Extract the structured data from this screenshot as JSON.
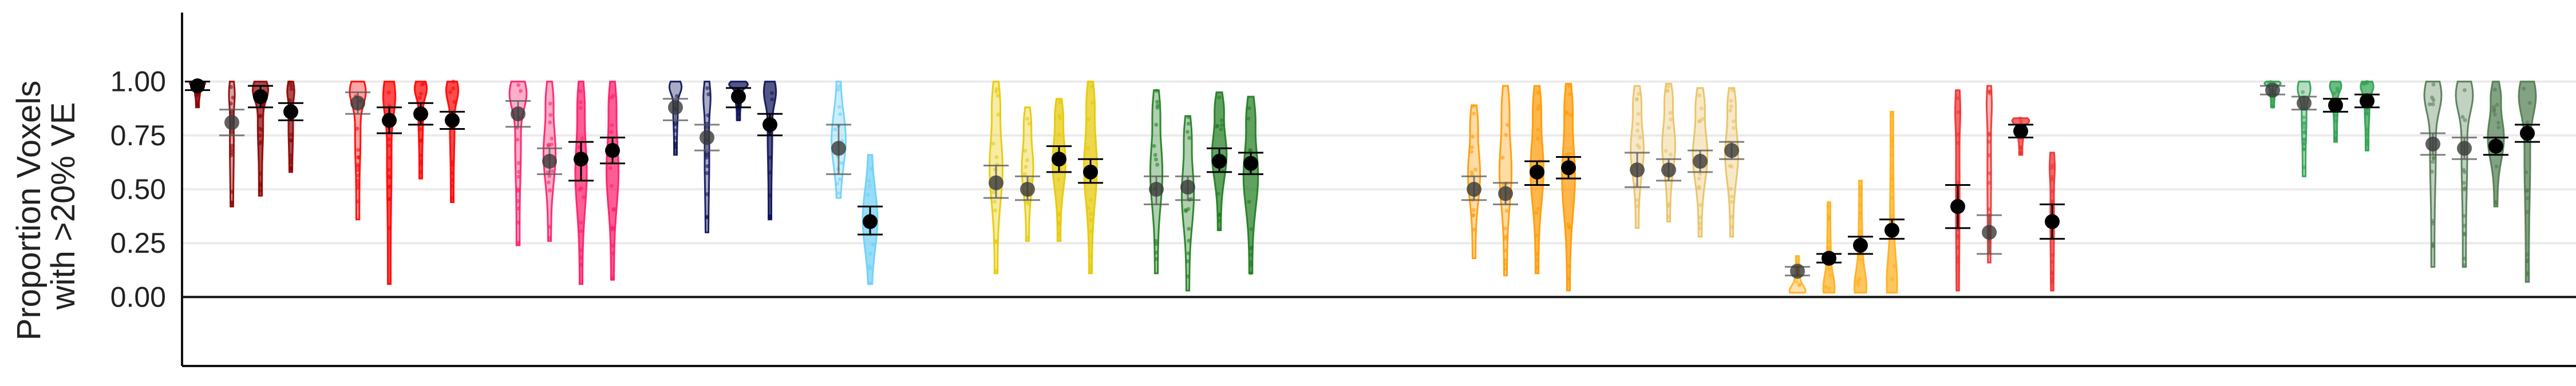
{
  "chart_data": {
    "type": "violin",
    "ylabel": [
      "Proportion Voxels",
      "with >20% VE"
    ],
    "yticks": [
      "0.00",
      "0.25",
      "0.50",
      "0.75",
      "1.00"
    ],
    "ylim": [
      -0.32,
      1.32
    ],
    "grid": true,
    "legend": "none",
    "groups": [
      {
        "color": "#8B0000",
        "violins": [
          {
            "min": 0.88,
            "max": 1.0,
            "mean": 0.98,
            "ci": [
              0.96,
              1.0
            ],
            "shape": "top",
            "w": 0.4
          },
          {
            "min": 0.42,
            "max": 1.0,
            "mean": 0.81,
            "ci": [
              0.75,
              0.87
            ],
            "shape": "thin",
            "w": 0.18,
            "faded": true
          },
          {
            "min": 0.47,
            "max": 1.0,
            "mean": 0.93,
            "ci": [
              0.88,
              0.98
            ],
            "shape": "top",
            "w": 0.4
          },
          {
            "min": 0.58,
            "max": 1.0,
            "mean": 0.86,
            "ci": [
              0.82,
              0.9
            ],
            "shape": "thin",
            "w": 0.25
          }
        ]
      },
      {
        "color": "#FF0000",
        "violins": [
          {
            "min": 0.36,
            "max": 1.0,
            "mean": 0.9,
            "ci": [
              0.85,
              0.95
            ],
            "shape": "top",
            "w": 0.42,
            "faded": true
          },
          {
            "min": 0.06,
            "max": 1.0,
            "mean": 0.82,
            "ci": [
              0.76,
              0.88
            ],
            "shape": "top",
            "w": 0.3
          },
          {
            "min": 0.55,
            "max": 1.0,
            "mean": 0.85,
            "ci": [
              0.8,
              0.9
            ],
            "shape": "top",
            "w": 0.3
          },
          {
            "min": 0.44,
            "max": 1.0,
            "mean": 0.82,
            "ci": [
              0.78,
              0.86
            ],
            "shape": "top",
            "w": 0.3
          }
        ]
      },
      {
        "color": "#FF1A66",
        "violins": [
          {
            "min": 0.24,
            "max": 1.0,
            "mean": 0.85,
            "ci": [
              0.79,
              0.91
            ],
            "shape": "top",
            "w": 0.45,
            "faded": true
          },
          {
            "min": 0.26,
            "max": 1.0,
            "mean": 0.63,
            "ci": [
              0.57,
              0.69
            ],
            "shape": "mid",
            "w": 0.32,
            "faded": true
          },
          {
            "min": 0.06,
            "max": 1.0,
            "mean": 0.64,
            "ci": [
              0.54,
              0.72
            ],
            "shape": "mid",
            "w": 0.3
          },
          {
            "min": 0.08,
            "max": 1.0,
            "mean": 0.68,
            "ci": [
              0.62,
              0.74
            ],
            "shape": "mid",
            "w": 0.32
          }
        ]
      },
      {
        "color": "#0A1055",
        "violins": [
          {
            "min": 0.66,
            "max": 1.0,
            "mean": 0.88,
            "ci": [
              0.82,
              0.92
            ],
            "shape": "top",
            "w": 0.3,
            "faded": true
          },
          {
            "min": 0.3,
            "max": 1.0,
            "mean": 0.74,
            "ci": [
              0.68,
              0.8
            ],
            "shape": "thin",
            "w": 0.25,
            "faded": true
          },
          {
            "min": 0.82,
            "max": 1.0,
            "mean": 0.93,
            "ci": [
              0.88,
              0.97
            ],
            "shape": "top",
            "w": 0.5
          },
          {
            "min": 0.36,
            "max": 1.0,
            "mean": 0.8,
            "ci": [
              0.75,
              0.85
            ],
            "shape": "top",
            "w": 0.3
          }
        ]
      },
      {
        "color": "#6CCFF6",
        "violins": [
          {
            "min": 0.46,
            "max": 1.0,
            "mean": 0.69,
            "ci": [
              0.57,
              0.8
            ],
            "shape": "wide",
            "w": 0.38,
            "faded": true
          },
          {
            "min": 0.06,
            "max": 0.66,
            "mean": 0.35,
            "ci": [
              0.29,
              0.42
            ],
            "shape": "wide",
            "w": 0.4
          }
        ]
      },
      {
        "color": "#E6C800",
        "violins": [
          {
            "min": 0.11,
            "max": 1.0,
            "mean": 0.53,
            "ci": [
              0.46,
              0.61
            ],
            "shape": "mid",
            "w": 0.35,
            "faded": true
          },
          {
            "min": 0.26,
            "max": 0.88,
            "mean": 0.5,
            "ci": [
              0.45,
              0.56
            ],
            "shape": "mid",
            "w": 0.3,
            "faded": true
          },
          {
            "min": 0.26,
            "max": 0.92,
            "mean": 0.64,
            "ci": [
              0.58,
              0.7
            ],
            "shape": "mid",
            "w": 0.35
          },
          {
            "min": 0.11,
            "max": 1.0,
            "mean": 0.58,
            "ci": [
              0.53,
              0.64
            ],
            "shape": "mid",
            "w": 0.35
          }
        ]
      },
      {
        "color": "#1E7B1E",
        "violins": [
          {
            "min": 0.11,
            "max": 0.96,
            "mean": 0.5,
            "ci": [
              0.43,
              0.56
            ],
            "shape": "mid",
            "w": 0.32,
            "faded": true
          },
          {
            "min": 0.03,
            "max": 0.84,
            "mean": 0.51,
            "ci": [
              0.45,
              0.56
            ],
            "shape": "mid",
            "w": 0.32,
            "faded": true
          },
          {
            "min": 0.31,
            "max": 0.95,
            "mean": 0.63,
            "ci": [
              0.58,
              0.69
            ],
            "shape": "mid",
            "w": 0.4
          },
          {
            "min": 0.11,
            "max": 0.93,
            "mean": 0.62,
            "ci": [
              0.57,
              0.67
            ],
            "shape": "mid",
            "w": 0.4
          }
        ]
      },
      {
        "color": "#FF9900",
        "violins": [
          {
            "min": 0.18,
            "max": 0.89,
            "mean": 0.5,
            "ci": [
              0.45,
              0.56
            ],
            "shape": "mid",
            "w": 0.32,
            "faded": true
          },
          {
            "min": 0.1,
            "max": 0.98,
            "mean": 0.48,
            "ci": [
              0.43,
              0.53
            ],
            "shape": "mid",
            "w": 0.32,
            "faded": true
          },
          {
            "min": 0.11,
            "max": 0.98,
            "mean": 0.58,
            "ci": [
              0.52,
              0.63
            ],
            "shape": "mid",
            "w": 0.35
          },
          {
            "min": 0.03,
            "max": 0.99,
            "mean": 0.6,
            "ci": [
              0.55,
              0.65
            ],
            "shape": "mid",
            "w": 0.35
          }
        ]
      },
      {
        "color": "#E8C060",
        "violins": [
          {
            "min": 0.32,
            "max": 0.98,
            "mean": 0.59,
            "ci": [
              0.51,
              0.67
            ],
            "shape": "mid",
            "w": 0.35,
            "faded": true
          },
          {
            "min": 0.35,
            "max": 0.99,
            "mean": 0.59,
            "ci": [
              0.54,
              0.64
            ],
            "shape": "mid",
            "w": 0.35,
            "faded": true
          },
          {
            "min": 0.28,
            "max": 0.97,
            "mean": 0.63,
            "ci": [
              0.58,
              0.68
            ],
            "shape": "mid",
            "w": 0.4,
            "faded": true
          },
          {
            "min": 0.28,
            "max": 0.97,
            "mean": 0.68,
            "ci": [
              0.64,
              0.72
            ],
            "shape": "mid",
            "w": 0.35,
            "faded": true
          }
        ]
      },
      {
        "color": "#FFAE1A",
        "violins": [
          {
            "min": 0.02,
            "max": 0.19,
            "mean": 0.12,
            "ci": [
              0.1,
              0.14
            ],
            "shape": "bottom",
            "w": 0.42,
            "faded": true
          },
          {
            "min": 0.02,
            "max": 0.44,
            "mean": 0.18,
            "ci": [
              0.16,
              0.2
            ],
            "shape": "bottom",
            "w": 0.28
          },
          {
            "min": 0.02,
            "max": 0.54,
            "mean": 0.24,
            "ci": [
              0.2,
              0.28
            ],
            "shape": "bottom",
            "w": 0.3
          },
          {
            "min": 0.02,
            "max": 0.86,
            "mean": 0.31,
            "ci": [
              0.27,
              0.36
            ],
            "shape": "bottom",
            "w": 0.25
          }
        ]
      },
      {
        "color": "#EE3030",
        "violins": [
          {
            "min": 0.03,
            "max": 0.96,
            "mean": 0.42,
            "ci": [
              0.32,
              0.52
            ],
            "shape": "thin",
            "w": 0.15
          },
          {
            "min": 0.16,
            "max": 0.98,
            "mean": 0.3,
            "ci": [
              0.2,
              0.38
            ],
            "shape": "thin",
            "w": 0.15,
            "faded": true
          },
          {
            "min": 0.66,
            "max": 0.83,
            "mean": 0.77,
            "ci": [
              0.74,
              0.8
            ],
            "shape": "top",
            "w": 0.45
          },
          {
            "min": 0.03,
            "max": 0.67,
            "mean": 0.35,
            "ci": [
              0.27,
              0.43
            ],
            "shape": "thin",
            "w": 0.15
          }
        ]
      },
      {
        "color": "#2E9E4F",
        "violins": [
          {
            "min": 0.88,
            "max": 1.0,
            "mean": 0.96,
            "ci": [
              0.94,
              0.98
            ],
            "shape": "top",
            "w": 0.42,
            "faded": true
          },
          {
            "min": 0.56,
            "max": 1.0,
            "mean": 0.9,
            "ci": [
              0.87,
              0.93
            ],
            "shape": "top",
            "w": 0.32,
            "faded": true
          },
          {
            "min": 0.72,
            "max": 1.0,
            "mean": 0.89,
            "ci": [
              0.86,
              0.92
            ],
            "shape": "top",
            "w": 0.28
          },
          {
            "min": 0.68,
            "max": 1.0,
            "mean": 0.91,
            "ci": [
              0.88,
              0.94
            ],
            "shape": "top",
            "w": 0.32
          }
        ]
      },
      {
        "color": "#4F7A4F",
        "violins": [
          {
            "min": 0.14,
            "max": 1.0,
            "mean": 0.71,
            "ci": [
              0.66,
              0.76
            ],
            "shape": "top",
            "w": 0.45,
            "faded": true
          },
          {
            "min": 0.14,
            "max": 1.0,
            "mean": 0.69,
            "ci": [
              0.64,
              0.74
            ],
            "shape": "top",
            "w": 0.45,
            "faded": true
          },
          {
            "min": 0.42,
            "max": 1.0,
            "mean": 0.7,
            "ci": [
              0.66,
              0.74
            ],
            "shape": "mid",
            "w": 0.45
          },
          {
            "min": 0.07,
            "max": 1.0,
            "mean": 0.76,
            "ci": [
              0.72,
              0.8
            ],
            "shape": "top",
            "w": 0.45
          }
        ]
      }
    ]
  }
}
